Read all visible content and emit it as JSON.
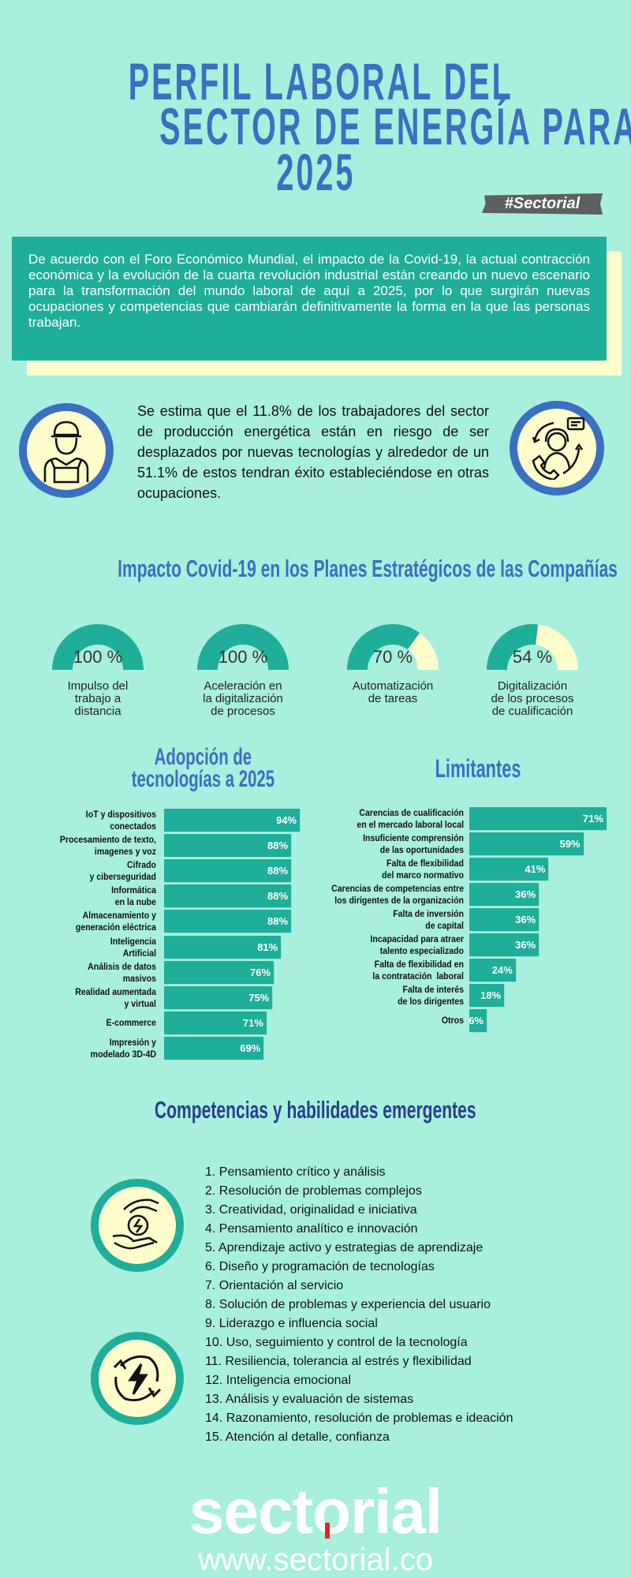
{
  "header": {
    "title_lines": [
      "PERFIL LABORAL DEL",
      "SECTOR DE ENERGÍA PARA",
      "2025"
    ],
    "tag": "#Sectorial"
  },
  "intro": {
    "text": "De acuerdo con el Foro Económico Mundial, el impacto de la Covid-19, la actual contracción económica y la evolución de la cuarta revolución industrial están creando un nuevo escenario para la transformación del mundo laboral de aquí a 2025, por lo que surgirán nuevas ocupaciones y competencias que cambiarán definitivamente la forma en la que las personas trabajan."
  },
  "stat": {
    "text": "Se estima que el 11.8% de los trabajadores del sector de producción energética están en riesgo de ser desplazados por nuevas tecnologías y alrededor de un 51.1% de estos tendran éxito estableciéndose en otras ocupaciones.",
    "left_icon": "worker-icon",
    "right_icon": "call-center-agent-icon"
  },
  "impact": {
    "heading": "Impacto Covid-19 en los Planes Estratégicos de las Compañías",
    "gauges": [
      {
        "value": 100,
        "pct_label": "100 %",
        "label": "Impulso del\ntrabajo a\ndistancia"
      },
      {
        "value": 100,
        "pct_label": "100 %",
        "label": "Aceleración en\nla digitalización\nde procesos"
      },
      {
        "value": 70,
        "pct_label": "70 %",
        "label": "Automatización\nde tareas"
      },
      {
        "value": 54,
        "pct_label": "54 %",
        "label": "Digitalización\nde los procesos\nde cualificación"
      }
    ]
  },
  "colors": {
    "background": "#a8f0dd",
    "teal": "#1fae99",
    "blue": "#3b6fc1",
    "cream": "#fffdcc",
    "dark_blue": "#2a3f8f"
  },
  "chart_data": [
    {
      "type": "bar",
      "orientation": "horizontal",
      "title": "Adopción de\ntecnologías a 2025",
      "categories": [
        "IoT y dispositivos\nconectados",
        "Procesamiento de texto,\nimagenes y voz",
        "Cifrado\ny ciberseguridad",
        "Informática\nen la nube",
        "Almacenamiento y\ngeneración eléctrica",
        "Inteligencia\nArtificial",
        "Análisis de datos\nmasivos",
        "Realidad aumentada\ny virtual",
        "E-commerce",
        "Impresión y\nmodelado 3D-4D"
      ],
      "values": [
        94,
        88,
        88,
        88,
        88,
        81,
        76,
        75,
        71,
        69
      ],
      "unit": "%"
    },
    {
      "type": "bar",
      "orientation": "horizontal",
      "title": "Limitantes",
      "categories": [
        "Carencias de cualificación\nen el mercado laboral local",
        "Insuficiente comprensión\nde las oportunidades",
        "Falta de flexibilidad\ndel marco normativo",
        "Carencias de competencias entre\nlos dirigentes de la organización",
        "Falta de inversión\nde capital",
        "Incapacidad para atraer\ntalento especializado",
        "Falta de flexibilidad en\nla contratación  laboral",
        "Falta de interés\nde los dirigentes",
        "Otros"
      ],
      "values": [
        71,
        59,
        41,
        36,
        36,
        36,
        24,
        18,
        6
      ],
      "unit": "%"
    }
  ],
  "skills": {
    "heading": "Competencias y habilidades emergentes",
    "items": [
      "1. Pensamiento crítico y análisis",
      "2. Resolución de problemas complejos",
      "3. Creatividad, originalidad e iniciativa",
      "4. Pensamiento analítico e innovación",
      "5. Aprendizaje activo y estrategias de aprendizaje",
      "6. Diseño y programación de tecnologías",
      "7. Orientación al servicio",
      "8. Solución de problemas y experiencia del usuario",
      "9. Liderazgo e influencia social",
      "10. Uso, seguimiento y control de la tecnología",
      "11. Resiliencia, tolerancia al estrés y flexibilidad",
      "12. Inteligencia emocional",
      "13. Análisis y evaluación de sistemas",
      "14. Razonamiento, resolución de problemas e ideación",
      "15. Atención al detalle, confianza"
    ]
  },
  "footer": {
    "logo": "sectorial",
    "url": "www.sectorial.co"
  }
}
